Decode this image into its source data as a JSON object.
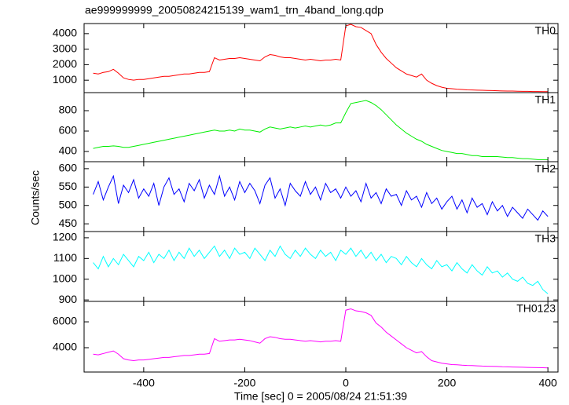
{
  "title": "ae999999999_20050824215139_wam1_trn_4band_long.qdp",
  "ylabel": "Counts/sec",
  "xlabel": "Time [sec] 0 = 2005/08/24 21:51:39",
  "xlim": [
    -518,
    420
  ],
  "xticks": [
    -400,
    -200,
    0,
    200,
    400
  ],
  "x": [
    -500,
    -490,
    -480,
    -470,
    -460,
    -450,
    -440,
    -430,
    -420,
    -410,
    -400,
    -390,
    -380,
    -370,
    -360,
    -350,
    -340,
    -330,
    -320,
    -310,
    -300,
    -290,
    -280,
    -270,
    -260,
    -250,
    -240,
    -230,
    -220,
    -210,
    -200,
    -190,
    -180,
    -170,
    -160,
    -150,
    -140,
    -130,
    -120,
    -110,
    -100,
    -90,
    -80,
    -70,
    -60,
    -50,
    -40,
    -30,
    -20,
    -10,
    0,
    10,
    20,
    30,
    40,
    50,
    60,
    70,
    80,
    90,
    100,
    110,
    120,
    130,
    140,
    150,
    160,
    170,
    180,
    190,
    200,
    210,
    220,
    230,
    240,
    250,
    260,
    270,
    280,
    290,
    300,
    310,
    320,
    330,
    340,
    350,
    360,
    370,
    380,
    390,
    400
  ],
  "chart_data": [
    {
      "type": "line",
      "ylim": [
        200,
        4650
      ],
      "yticks": [
        1000,
        2000,
        3000,
        4000
      ],
      "series": [
        {
          "name": "TH0",
          "color": "#ff0000",
          "values": [
            1450,
            1400,
            1500,
            1550,
            1700,
            1450,
            1150,
            1050,
            1000,
            1050,
            1050,
            1100,
            1150,
            1200,
            1250,
            1250,
            1300,
            1350,
            1400,
            1400,
            1450,
            1500,
            1500,
            1550,
            2450,
            2300,
            2350,
            2400,
            2400,
            2450,
            2400,
            2350,
            2300,
            2250,
            2500,
            2650,
            2600,
            2500,
            2450,
            2450,
            2400,
            2350,
            2300,
            2350,
            2300,
            2250,
            2300,
            2300,
            2350,
            2300,
            4500,
            4600,
            4450,
            4400,
            4200,
            4000,
            3300,
            2800,
            2400,
            2100,
            1800,
            1600,
            1400,
            1300,
            1200,
            1400,
            1000,
            800,
            650,
            550,
            480,
            450,
            420,
            400,
            380,
            370,
            360,
            350,
            340,
            330,
            320,
            310,
            300,
            300,
            290,
            280,
            280,
            270,
            270,
            260,
            260
          ]
        }
      ]
    },
    {
      "type": "line",
      "ylim": [
        300,
        977
      ],
      "yticks": [
        400,
        600,
        800
      ],
      "series": [
        {
          "name": "TH1",
          "color": "#00ee00",
          "values": [
            430,
            440,
            450,
            450,
            455,
            450,
            440,
            440,
            450,
            460,
            470,
            480,
            490,
            500,
            510,
            520,
            530,
            540,
            550,
            560,
            570,
            580,
            590,
            600,
            610,
            600,
            600,
            610,
            600,
            620,
            610,
            610,
            600,
            590,
            620,
            640,
            630,
            620,
            630,
            640,
            630,
            640,
            650,
            640,
            650,
            660,
            650,
            660,
            680,
            680,
            780,
            870,
            880,
            890,
            900,
            880,
            850,
            810,
            760,
            710,
            660,
            620,
            580,
            550,
            520,
            500,
            470,
            450,
            430,
            410,
            400,
            390,
            380,
            380,
            370,
            360,
            360,
            350,
            350,
            350,
            350,
            345,
            340,
            340,
            335,
            330,
            330,
            325,
            320,
            320,
            320
          ]
        }
      ]
    },
    {
      "type": "line",
      "ylim": [
        429,
        619
      ],
      "yticks": [
        450,
        500,
        550,
        600
      ],
      "series": [
        {
          "name": "TH2",
          "color": "#0000ff",
          "values": [
            530,
            565,
            515,
            550,
            580,
            505,
            555,
            535,
            570,
            520,
            545,
            525,
            560,
            500,
            550,
            575,
            530,
            545,
            510,
            560,
            540,
            570,
            520,
            555,
            530,
            580,
            525,
            550,
            515,
            565,
            535,
            560,
            540,
            505,
            555,
            575,
            520,
            545,
            500,
            560,
            540,
            525,
            565,
            530,
            550,
            515,
            560,
            535,
            545,
            520,
            550,
            525,
            540,
            510,
            560,
            520,
            535,
            505,
            545,
            525,
            530,
            500,
            540,
            515,
            525,
            495,
            535,
            505,
            520,
            490,
            510,
            525,
            490,
            515,
            480,
            520,
            495,
            505,
            475,
            510,
            485,
            500,
            470,
            495,
            480,
            465,
            490,
            475,
            460,
            485,
            470
          ]
        }
      ]
    },
    {
      "type": "line",
      "ylim": [
        893,
        1230
      ],
      "yticks": [
        900,
        1000,
        1100,
        1200
      ],
      "series": [
        {
          "name": "TH3",
          "color": "#00ffff",
          "values": [
            1080,
            1050,
            1110,
            1060,
            1100,
            1070,
            1120,
            1090,
            1060,
            1110,
            1090,
            1130,
            1080,
            1120,
            1100,
            1140,
            1090,
            1130,
            1100,
            1150,
            1110,
            1140,
            1100,
            1130,
            1160,
            1110,
            1140,
            1100,
            1150,
            1120,
            1130,
            1100,
            1150,
            1120,
            1090,
            1140,
            1110,
            1160,
            1120,
            1100,
            1140,
            1110,
            1150,
            1120,
            1100,
            1140,
            1110,
            1130,
            1090,
            1140,
            1120,
            1150,
            1110,
            1140,
            1100,
            1130,
            1090,
            1120,
            1080,
            1110,
            1100,
            1070,
            1110,
            1080,
            1060,
            1100,
            1070,
            1050,
            1090,
            1060,
            1070,
            1040,
            1080,
            1050,
            1030,
            1070,
            1040,
            1020,
            1060,
            1030,
            1040,
            1010,
            1030,
            1000,
            990,
            1010,
            980,
            970,
            990,
            950,
            930
          ]
        }
      ]
    },
    {
      "type": "line",
      "ylim": [
        2120,
        7580
      ],
      "yticks": [
        4000,
        6000
      ],
      "series": [
        {
          "name": "TH0123",
          "color": "#ff00ff",
          "values": [
            3500,
            3450,
            3550,
            3650,
            3750,
            3500,
            3150,
            3050,
            3000,
            3050,
            3050,
            3100,
            3150,
            3200,
            3250,
            3250,
            3300,
            3350,
            3400,
            3400,
            3450,
            3500,
            3500,
            3550,
            4700,
            4500,
            4550,
            4600,
            4600,
            4650,
            4600,
            4550,
            4450,
            4350,
            4700,
            4850,
            4800,
            4700,
            4650,
            4650,
            4600,
            4550,
            4500,
            4550,
            4500,
            4450,
            4500,
            4500,
            4550,
            4500,
            6900,
            7000,
            6850,
            6800,
            6700,
            6500,
            5900,
            5600,
            5200,
            4900,
            4600,
            4300,
            4000,
            3800,
            3600,
            3700,
            3300,
            3000,
            2900,
            2800,
            2750,
            2700,
            2680,
            2650,
            2630,
            2620,
            2600,
            2580,
            2570,
            2560,
            2550,
            2530,
            2520,
            2510,
            2500,
            2490,
            2480,
            2470,
            2460,
            2450,
            2440
          ]
        }
      ]
    }
  ]
}
